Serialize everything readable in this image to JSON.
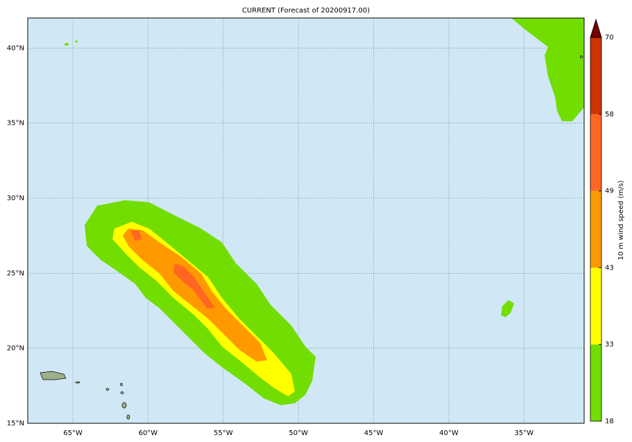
{
  "chart_data": {
    "type": "map",
    "title": "CURRENT (Forecast of 20200917.00)",
    "xlim": [
      -68,
      -31
    ],
    "ylim": [
      15,
      42
    ],
    "xticks": [
      {
        "value": -65,
        "label": "65°W"
      },
      {
        "value": -60,
        "label": "60°W"
      },
      {
        "value": -55,
        "label": "55°W"
      },
      {
        "value": -50,
        "label": "50°W"
      },
      {
        "value": -45,
        "label": "45°W"
      },
      {
        "value": -40,
        "label": "40°W"
      },
      {
        "value": -35,
        "label": "35°W"
      }
    ],
    "yticks": [
      {
        "value": 15,
        "label": "15°N"
      },
      {
        "value": 20,
        "label": "20°N"
      },
      {
        "value": 25,
        "label": "25°N"
      },
      {
        "value": 30,
        "label": "30°N"
      },
      {
        "value": 35,
        "label": "35°N"
      },
      {
        "value": 40,
        "label": "40°N"
      }
    ],
    "grid": true,
    "colorbar": {
      "label": "10 m wind speed (m/s)",
      "levels": [
        18,
        33,
        43,
        49,
        58,
        70
      ],
      "colors": [
        "#72dd00",
        "#ffff00",
        "#ff9900",
        "#ff6622",
        "#cc3300"
      ],
      "extend_color": "#770000"
    }
  }
}
